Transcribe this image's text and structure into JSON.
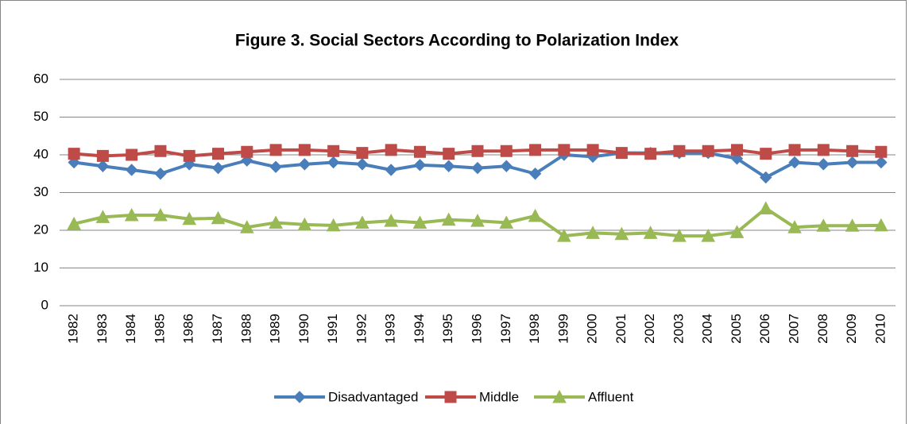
{
  "chart_data": {
    "type": "line",
    "title": "Figure 3. Social Sectors According to Polarization Index",
    "categories": [
      "1982",
      "1983",
      "1984",
      "1985",
      "1986",
      "1987",
      "1988",
      "1989",
      "1990",
      "1991",
      "1992",
      "1993",
      "1994",
      "1995",
      "1996",
      "1997",
      "1998",
      "1999",
      "2000",
      "2001",
      "2002",
      "2003",
      "2004",
      "2005",
      "2006",
      "2007",
      "2008",
      "2009",
      "2010"
    ],
    "series": [
      {
        "name": "Disadvantaged",
        "color": "#4a7ebb",
        "marker": "diamond",
        "values": [
          38,
          37,
          36,
          35,
          37.5,
          36.5,
          38.5,
          36.8,
          37.5,
          38,
          37.5,
          36,
          37.3,
          37,
          36.5,
          37,
          35,
          40,
          39.5,
          40.5,
          40.5,
          40.5,
          40.5,
          39,
          34,
          38,
          37.5,
          38,
          38
        ]
      },
      {
        "name": "Middle",
        "color": "#be4b48",
        "marker": "square",
        "values": [
          40.3,
          39.7,
          40,
          41,
          39.7,
          40.3,
          40.8,
          41.3,
          41.3,
          41,
          40.5,
          41.3,
          40.8,
          40.3,
          41,
          41,
          41.3,
          41.3,
          41.3,
          40.5,
          40.3,
          41,
          41,
          41.3,
          40.3,
          41.3,
          41.3,
          41,
          40.8
        ]
      },
      {
        "name": "Affluent",
        "color": "#98b954",
        "marker": "triangle",
        "values": [
          21.7,
          23.5,
          24,
          24,
          23,
          23.2,
          20.8,
          22,
          21.5,
          21.3,
          22,
          22.5,
          22,
          22.8,
          22.5,
          22,
          23.8,
          18.5,
          19.3,
          19,
          19.3,
          18.5,
          18.5,
          19.5,
          25.8,
          20.8,
          21.2,
          21.2,
          21.3
        ]
      }
    ],
    "ylim": [
      0,
      60
    ],
    "yticks": [
      0,
      10,
      20,
      30,
      40,
      50,
      60
    ],
    "grid": true,
    "legend": "bottom"
  }
}
